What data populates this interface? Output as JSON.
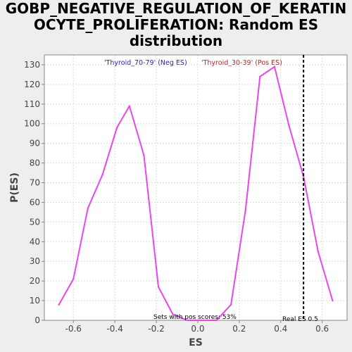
{
  "chart_data": {
    "type": "line",
    "title_lines": [
      "GOBP_NEGATIVE_REGULATION_OF_KERATIN",
      "OCYTE_PROLIFERATION: Random ES",
      "distribution"
    ],
    "xlabel": "ES",
    "ylabel": "P(ES)",
    "xlim": [
      -0.74,
      0.72
    ],
    "ylim": [
      0,
      135
    ],
    "x_ticks": [
      -0.6,
      -0.4,
      -0.2,
      0.0,
      0.2,
      0.4,
      0.6
    ],
    "x_tick_labels": [
      "-0.6",
      "-0.4",
      "-0.2",
      "0.0",
      "0.2",
      "0.4",
      "0.6"
    ],
    "y_ticks": [
      0,
      10,
      20,
      30,
      40,
      50,
      60,
      70,
      80,
      90,
      100,
      110,
      120,
      130
    ],
    "y_tick_labels": [
      "0",
      "10",
      "20",
      "30",
      "40",
      "50",
      "60",
      "70",
      "80",
      "90",
      "100",
      "110",
      "120",
      "130"
    ],
    "grid": true,
    "series": [
      {
        "color": "#ee44ee",
        "x": [
          -0.67,
          -0.6,
          -0.53,
          -0.46,
          -0.39,
          -0.33,
          -0.26,
          -0.19,
          -0.12,
          -0.05,
          0.02,
          0.09,
          0.16,
          0.23,
          0.3,
          0.37,
          0.44,
          0.51,
          0.58,
          0.65
        ],
        "y": [
          8,
          21,
          57,
          74,
          98,
          109,
          84,
          17,
          3,
          0,
          0,
          0,
          8,
          56,
          124,
          129,
          99,
          73,
          35,
          10
        ]
      }
    ],
    "real_es": 0.51,
    "legend": [
      {
        "label": "'Thyroid_70-79' (Neg ES)",
        "color": "#2222cc"
      },
      {
        "label": "'Thyroid_30-39' (Pos ES)",
        "color": "#cc2222"
      }
    ],
    "annotations": {
      "pos_scores": "Sets with pos scores: 53%",
      "real_es": "Real ES 0.5"
    }
  }
}
